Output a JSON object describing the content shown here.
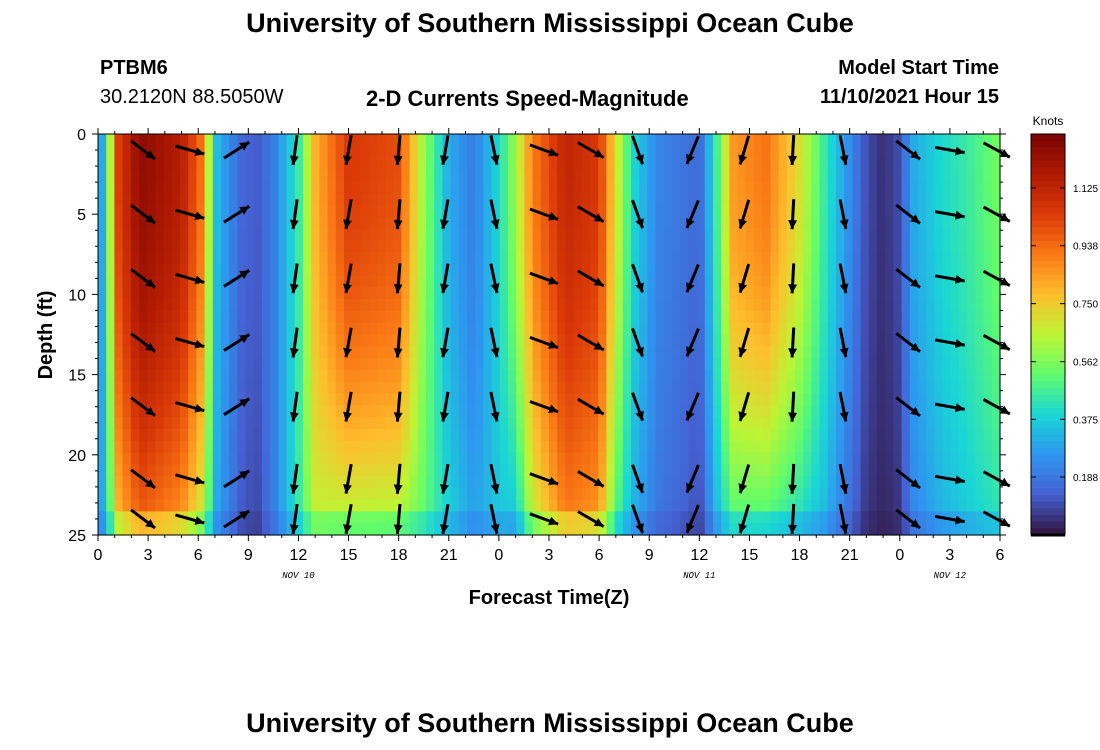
{
  "header": {
    "title": "University of Southern Mississippi Ocean Cube",
    "station": "PTBM6",
    "coords": "30.2120N  88.5050W",
    "product": "2-D Currents Speed-Magnitude",
    "model_start_label": "Model Start Time",
    "model_start_value": "11/10/2021 Hour 15"
  },
  "footer": {
    "title": "University of Southern Mississippi Ocean Cube"
  },
  "chart_data": {
    "type": "heatmap",
    "title": "2-D Currents Speed-Magnitude",
    "xlabel": "Forecast Time(Z)",
    "ylabel": "Depth (ft)",
    "x_range_hours": [
      0,
      54
    ],
    "ylim": [
      0,
      25
    ],
    "x_tick_labels": [
      "0",
      "3",
      "6",
      "9",
      "12",
      "15",
      "18",
      "21",
      "0",
      "3",
      "6",
      "9",
      "12",
      "15",
      "18",
      "21",
      "0",
      "3",
      "6"
    ],
    "y_tick_labels": [
      "0",
      "5",
      "10",
      "15",
      "20",
      "25"
    ],
    "date_labels": [
      {
        "hour": 12,
        "text": "NOV 10"
      },
      {
        "hour": 36,
        "text": "NOV 11"
      },
      {
        "hour": 51,
        "text": "NOV 12"
      }
    ],
    "colorbar": {
      "title": "Knots",
      "range": [
        0,
        1.3
      ],
      "tick_values": [
        0.188,
        0.375,
        0.562,
        0.75,
        0.938,
        1.125
      ],
      "tick_labels": [
        "0.188",
        "0.375",
        "0.562",
        "0.750",
        "0.938",
        "1.125"
      ]
    },
    "speed_profile_by_hour": [
      [
        0,
        0.3,
        0.3
      ],
      [
        0.5,
        0.3,
        0.3
      ],
      [
        1,
        1.0,
        0.7
      ],
      [
        2.5,
        1.25,
        0.9
      ],
      [
        5,
        1.15,
        0.8
      ],
      [
        6.3,
        0.9,
        0.6
      ],
      [
        7,
        0.35,
        0.3
      ],
      [
        8.5,
        0.15,
        0.12
      ],
      [
        9.5,
        0.12,
        0.08
      ],
      [
        10.5,
        0.2,
        0.2
      ],
      [
        12,
        0.45,
        0.45
      ],
      [
        13,
        0.8,
        0.62
      ],
      [
        15,
        1.05,
        0.55
      ],
      [
        18,
        1.0,
        0.55
      ],
      [
        19.5,
        0.6,
        0.5
      ],
      [
        21,
        0.3,
        0.4
      ],
      [
        22.5,
        0.2,
        0.3
      ],
      [
        24,
        0.4,
        0.35
      ],
      [
        25,
        0.6,
        0.3
      ],
      [
        26,
        0.9,
        0.6
      ],
      [
        28,
        1.12,
        0.85
      ],
      [
        30,
        1.05,
        0.8
      ],
      [
        31,
        0.7,
        0.45
      ],
      [
        32,
        0.4,
        0.3
      ],
      [
        33.5,
        0.22,
        0.18
      ],
      [
        35,
        0.18,
        0.13
      ],
      [
        36,
        0.15,
        0.08
      ],
      [
        37,
        0.45,
        0.3
      ],
      [
        38,
        0.85,
        0.42
      ],
      [
        40,
        0.92,
        0.4
      ],
      [
        42,
        0.7,
        0.35
      ],
      [
        43.5,
        0.45,
        0.3
      ],
      [
        46,
        0.1,
        0.05
      ],
      [
        47,
        0.05,
        0.03
      ],
      [
        48,
        0.1,
        0.05
      ],
      [
        48.8,
        0.3,
        0.2
      ],
      [
        50.5,
        0.4,
        0.3
      ],
      [
        52,
        0.45,
        0.35
      ],
      [
        54,
        0.55,
        0.4
      ]
    ],
    "arrow_direction_by_hour": [
      [
        0,
        -55
      ],
      [
        3,
        -35
      ],
      [
        5,
        -35
      ],
      [
        7.5,
        62
      ],
      [
        12,
        -105
      ],
      [
        15,
        -100
      ],
      [
        18,
        -95
      ],
      [
        21,
        -100
      ],
      [
        23,
        -110
      ],
      [
        25,
        -20
      ],
      [
        28,
        -20
      ],
      [
        31,
        -40
      ],
      [
        34,
        -110
      ],
      [
        37,
        -115
      ],
      [
        41,
        -95
      ],
      [
        44,
        -85
      ],
      [
        46.5,
        -60
      ],
      [
        51,
        -10
      ],
      [
        54,
        -30
      ]
    ],
    "arrow_columns_hours": [
      2.7,
      5.5,
      8.3,
      11.8,
      15,
      18,
      20.8,
      23.7,
      26.7,
      29.5,
      32.3,
      35.6,
      38.7,
      41.6,
      44.6,
      48.5,
      51,
      53.8
    ],
    "arrow_rows_ft": [
      1,
      5,
      9,
      13,
      17,
      21.5,
      24
    ]
  }
}
